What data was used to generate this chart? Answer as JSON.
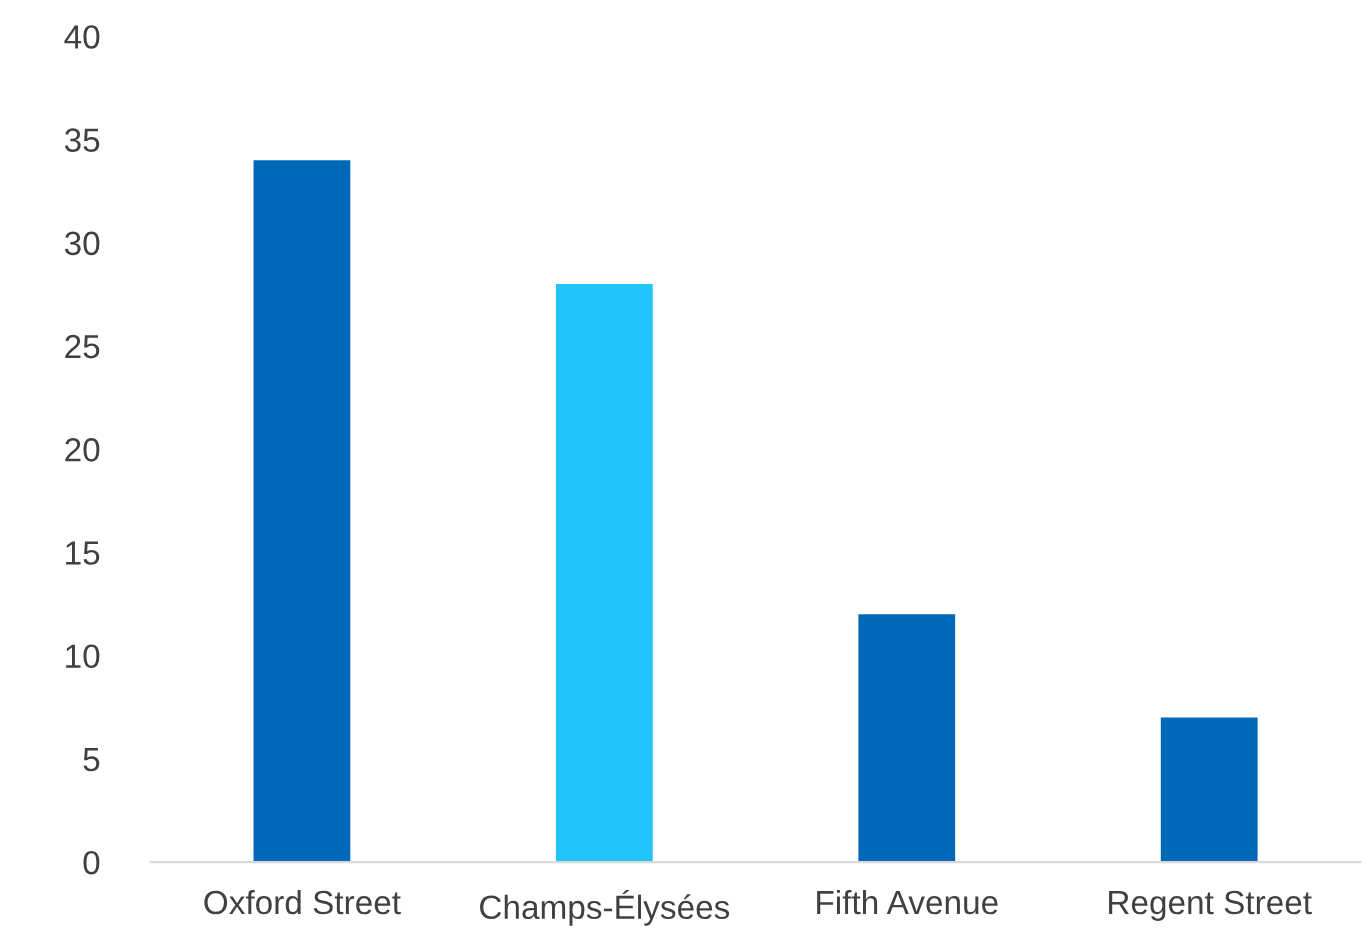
{
  "chart_data": {
    "type": "bar",
    "categories": [
      "Oxford Street",
      "Champs-Élysées",
      "Fifth Avenue",
      "Regent Street"
    ],
    "values": [
      34,
      28,
      12,
      7
    ],
    "colors": [
      "#0068b8",
      "#22c4fc",
      "#0068b8",
      "#0068b8"
    ],
    "ylim": [
      0,
      40
    ],
    "yticks": [
      0,
      5,
      10,
      15,
      20,
      25,
      30,
      35,
      40
    ],
    "grid": false,
    "legend": false
  }
}
